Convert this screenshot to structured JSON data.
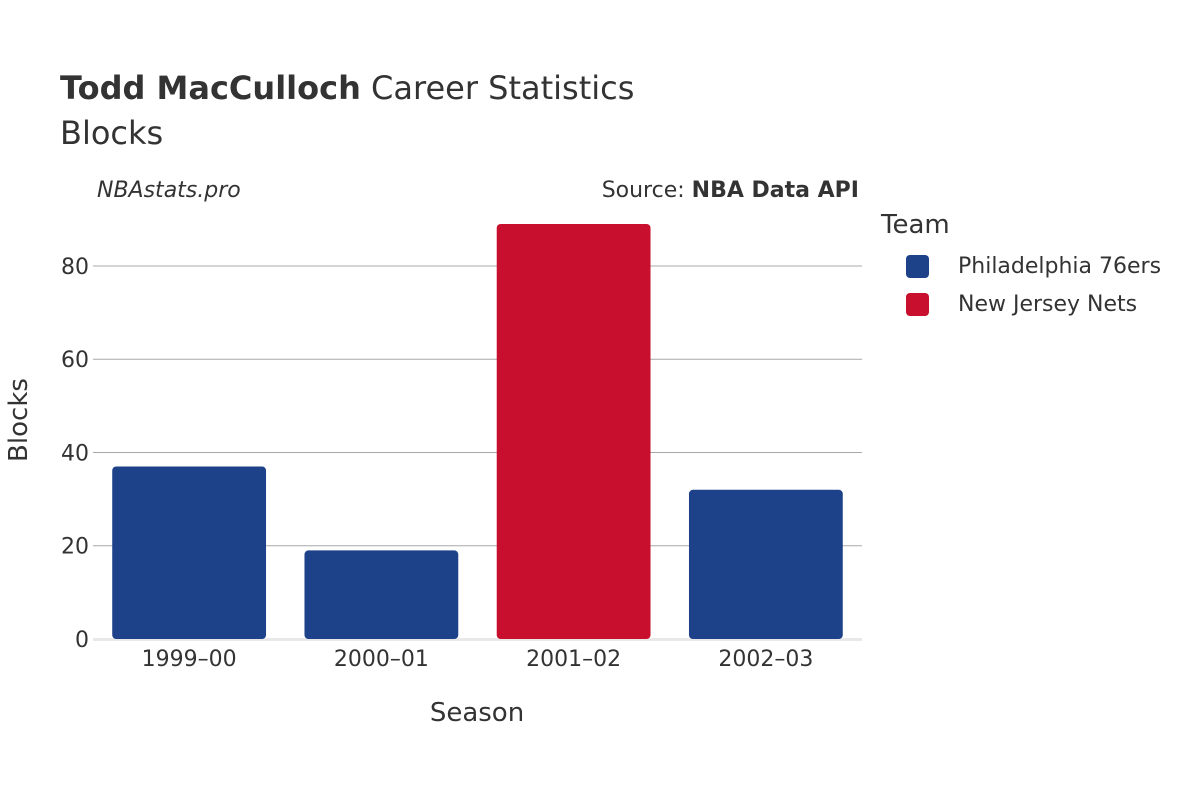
{
  "header": {
    "title_name": "Todd MacCulloch",
    "title_rest": " Career Statistics",
    "subtitle": "Blocks",
    "site": "NBAstats.pro",
    "source_prefix": "Source: ",
    "source_name": "NBA Data API"
  },
  "legend": {
    "title": "Team",
    "items": [
      {
        "label": "Philadelphia 76ers",
        "color": "#1d428a"
      },
      {
        "label": "New Jersey Nets",
        "color": "#c8102e"
      }
    ]
  },
  "chart_data": {
    "type": "bar",
    "title": "Todd MacCulloch Career Statistics",
    "subtitle": "Blocks",
    "xlabel": "Season",
    "ylabel": "Blocks",
    "categories": [
      "1999–00",
      "2000–01",
      "2001–02",
      "2002–03"
    ],
    "values": [
      37,
      19,
      89,
      32
    ],
    "teams": [
      "Philadelphia 76ers",
      "Philadelphia 76ers",
      "New Jersey Nets",
      "Philadelphia 76ers"
    ],
    "team_colors": {
      "Philadelphia 76ers": "#1d428a",
      "New Jersey Nets": "#c8102e"
    },
    "ylim": [
      0,
      89
    ],
    "yticks": [
      0,
      20,
      40,
      60,
      80
    ],
    "grid": true,
    "legend_position": "right"
  }
}
